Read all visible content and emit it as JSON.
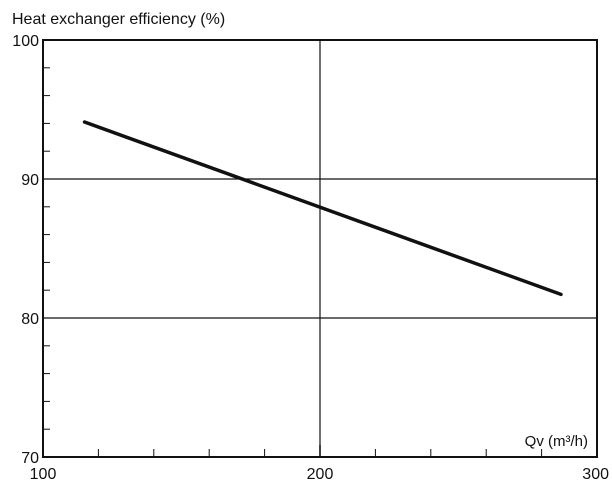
{
  "chart_data": {
    "type": "line",
    "title": "",
    "ylabel": "Heat exchanger efficiency (%)",
    "xlabel": "Qv (m³/h)",
    "xlim": [
      100,
      300
    ],
    "ylim": [
      70,
      100
    ],
    "xticks": [
      "100",
      "200",
      "300"
    ],
    "yticks": [
      "100",
      "90",
      "80",
      "70"
    ],
    "grid": true,
    "series": [
      {
        "x": [
          115,
          287
        ],
        "y": [
          94.1,
          81.7
        ]
      }
    ]
  }
}
